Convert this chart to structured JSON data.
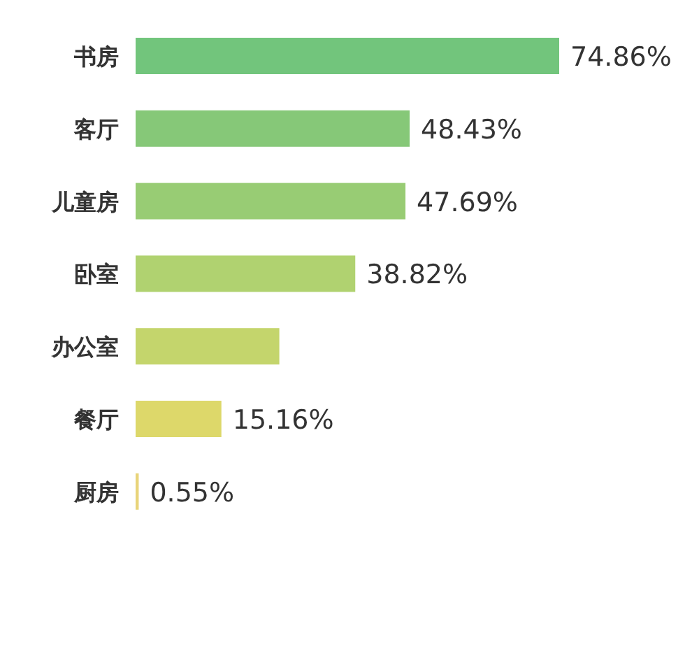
{
  "chart_data": {
    "type": "bar",
    "orientation": "horizontal",
    "categories": [
      "书房",
      "客厅",
      "儿童房",
      "卧室",
      "办公室",
      "餐厅",
      "厨房"
    ],
    "values": [
      74.86,
      48.43,
      47.69,
      38.82,
      25.4,
      15.16,
      0.55
    ],
    "colors": [
      "#72c57c",
      "#86c878",
      "#98cc74",
      "#b0d270",
      "#c4d56c",
      "#ddd86a",
      "#e8d47a"
    ],
    "value_labels": [
      "74.86%",
      "48.43%",
      "47.69%",
      "38.82%",
      null,
      "15.16%",
      "0.55%"
    ]
  }
}
